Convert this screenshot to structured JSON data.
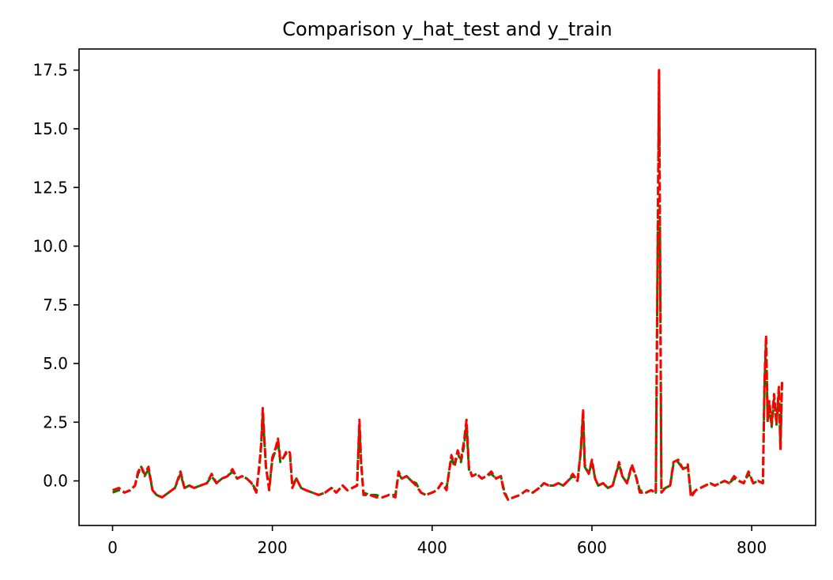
{
  "chart_data": {
    "type": "line",
    "title": "Comparison y_hat_test and y_train",
    "xlabel": "",
    "ylabel": "",
    "xlim": [
      -42,
      880
    ],
    "ylim": [
      -1.9,
      18.4
    ],
    "x_ticks": [
      0,
      200,
      400,
      600,
      800
    ],
    "x_tick_labels": [
      "0",
      "200",
      "400",
      "600",
      "800"
    ],
    "y_ticks": [
      0,
      2.5,
      5,
      7.5,
      10,
      12.5,
      15,
      17.5
    ],
    "y_tick_labels": [
      "0.0",
      "2.5",
      "5.0",
      "7.5",
      "10.0",
      "12.5",
      "15.0",
      "17.5"
    ],
    "grid": false,
    "legend": "none",
    "series": [
      {
        "color": "#008000",
        "style": "dashed",
        "points": [
          [
            0,
            -0.5
          ],
          [
            8,
            -0.4
          ],
          [
            15,
            -0.5
          ],
          [
            22,
            -0.4
          ],
          [
            28,
            -0.2
          ],
          [
            32,
            0.3
          ],
          [
            36,
            0.6
          ],
          [
            40,
            0.2
          ],
          [
            45,
            0.5
          ],
          [
            50,
            -0.4
          ],
          [
            55,
            -0.6
          ],
          [
            62,
            -0.7
          ],
          [
            70,
            -0.5
          ],
          [
            78,
            -0.3
          ],
          [
            85,
            0.3
          ],
          [
            90,
            -0.3
          ],
          [
            96,
            -0.2
          ],
          [
            102,
            -0.3
          ],
          [
            110,
            -0.2
          ],
          [
            118,
            -0.1
          ],
          [
            124,
            0.2
          ],
          [
            130,
            -0.1
          ],
          [
            137,
            0.1
          ],
          [
            144,
            0.2
          ],
          [
            150,
            0.4
          ],
          [
            156,
            0.1
          ],
          [
            162,
            0.2
          ],
          [
            168,
            0.1
          ],
          [
            174,
            -0.1
          ],
          [
            180,
            -0.4
          ],
          [
            184,
            0.7
          ],
          [
            186,
            1.5
          ],
          [
            188,
            2.9
          ],
          [
            190,
            1.7
          ],
          [
            192,
            0.6
          ],
          [
            196,
            -0.3
          ],
          [
            200,
            0.9
          ],
          [
            204,
            1.3
          ],
          [
            207,
            1.7
          ],
          [
            210,
            0.8
          ],
          [
            214,
            1.0
          ],
          [
            218,
            1.2
          ],
          [
            222,
            1.1
          ],
          [
            225,
            -0.2
          ],
          [
            230,
            0.1
          ],
          [
            236,
            -0.3
          ],
          [
            242,
            -0.4
          ],
          [
            250,
            -0.5
          ],
          [
            258,
            -0.6
          ],
          [
            266,
            -0.5
          ],
          [
            274,
            -0.3
          ],
          [
            280,
            -0.5
          ],
          [
            288,
            -0.2
          ],
          [
            294,
            -0.4
          ],
          [
            300,
            -0.3
          ],
          [
            306,
            -0.2
          ],
          [
            309,
            2.4
          ],
          [
            311,
            0.8
          ],
          [
            314,
            -0.5
          ],
          [
            322,
            -0.6
          ],
          [
            330,
            -0.6
          ],
          [
            338,
            -0.7
          ],
          [
            346,
            -0.6
          ],
          [
            354,
            -0.6
          ],
          [
            358,
            0.3
          ],
          [
            362,
            0.1
          ],
          [
            368,
            0.2
          ],
          [
            374,
            0.0
          ],
          [
            380,
            -0.1
          ],
          [
            386,
            -0.5
          ],
          [
            392,
            -0.6
          ],
          [
            400,
            -0.5
          ],
          [
            406,
            -0.4
          ],
          [
            412,
            -0.1
          ],
          [
            418,
            -0.3
          ],
          [
            424,
            1.0
          ],
          [
            428,
            0.6
          ],
          [
            432,
            1.2
          ],
          [
            436,
            0.8
          ],
          [
            440,
            1.5
          ],
          [
            443,
            2.4
          ],
          [
            446,
            0.5
          ],
          [
            450,
            0.2
          ],
          [
            456,
            0.3
          ],
          [
            462,
            0.1
          ],
          [
            468,
            0.2
          ],
          [
            474,
            0.3
          ],
          [
            480,
            0.1
          ],
          [
            486,
            0.2
          ],
          [
            490,
            -0.4
          ],
          [
            495,
            -0.8
          ],
          [
            502,
            -0.7
          ],
          [
            510,
            -0.6
          ],
          [
            518,
            -0.4
          ],
          [
            526,
            -0.5
          ],
          [
            534,
            -0.3
          ],
          [
            540,
            -0.1
          ],
          [
            546,
            -0.2
          ],
          [
            552,
            -0.2
          ],
          [
            558,
            -0.1
          ],
          [
            564,
            -0.2
          ],
          [
            570,
            0.0
          ],
          [
            576,
            0.2
          ],
          [
            582,
            0.0
          ],
          [
            586,
            1.2
          ],
          [
            589,
            2.9
          ],
          [
            591,
            0.6
          ],
          [
            596,
            0.3
          ],
          [
            600,
            0.8
          ],
          [
            604,
            0.1
          ],
          [
            608,
            -0.2
          ],
          [
            614,
            -0.1
          ],
          [
            620,
            -0.3
          ],
          [
            626,
            -0.2
          ],
          [
            630,
            0.3
          ],
          [
            634,
            0.7
          ],
          [
            638,
            0.2
          ],
          [
            644,
            -0.1
          ],
          [
            650,
            0.6
          ],
          [
            655,
            0.2
          ],
          [
            660,
            -0.4
          ],
          [
            668,
            -0.5
          ],
          [
            674,
            -0.4
          ],
          [
            680,
            -0.5
          ],
          [
            684,
            17.4
          ],
          [
            687,
            -0.4
          ],
          [
            692,
            -0.3
          ],
          [
            698,
            -0.2
          ],
          [
            702,
            0.7
          ],
          [
            708,
            0.8
          ],
          [
            714,
            0.5
          ],
          [
            720,
            0.6
          ],
          [
            724,
            -0.6
          ],
          [
            730,
            -0.4
          ],
          [
            736,
            -0.3
          ],
          [
            742,
            -0.2
          ],
          [
            748,
            -0.1
          ],
          [
            754,
            -0.2
          ],
          [
            760,
            -0.1
          ],
          [
            766,
            0.0
          ],
          [
            772,
            -0.1
          ],
          [
            778,
            0.1
          ],
          [
            784,
            0.0
          ],
          [
            790,
            -0.1
          ],
          [
            796,
            0.3
          ],
          [
            802,
            -0.1
          ],
          [
            808,
            0.0
          ],
          [
            814,
            -0.1
          ],
          [
            816,
            4.0
          ],
          [
            818,
            6.0
          ],
          [
            820,
            2.5
          ],
          [
            822,
            3.2
          ],
          [
            825,
            2.3
          ],
          [
            828,
            3.5
          ],
          [
            831,
            2.4
          ],
          [
            834,
            3.8
          ],
          [
            836,
            1.5
          ],
          [
            838,
            4.2
          ]
        ]
      },
      {
        "color": "#ff0000",
        "style": "dashed",
        "points": [
          [
            0,
            -0.4
          ],
          [
            8,
            -0.3
          ],
          [
            15,
            -0.5
          ],
          [
            22,
            -0.4
          ],
          [
            28,
            -0.2
          ],
          [
            32,
            0.4
          ],
          [
            36,
            0.6
          ],
          [
            40,
            0.3
          ],
          [
            45,
            0.6
          ],
          [
            50,
            -0.4
          ],
          [
            55,
            -0.6
          ],
          [
            62,
            -0.7
          ],
          [
            70,
            -0.5
          ],
          [
            78,
            -0.3
          ],
          [
            85,
            0.4
          ],
          [
            90,
            -0.3
          ],
          [
            96,
            -0.2
          ],
          [
            102,
            -0.3
          ],
          [
            110,
            -0.2
          ],
          [
            118,
            -0.1
          ],
          [
            124,
            0.3
          ],
          [
            130,
            -0.1
          ],
          [
            137,
            0.1
          ],
          [
            144,
            0.2
          ],
          [
            150,
            0.5
          ],
          [
            156,
            0.1
          ],
          [
            162,
            0.2
          ],
          [
            168,
            0.1
          ],
          [
            174,
            -0.1
          ],
          [
            180,
            -0.5
          ],
          [
            184,
            0.8
          ],
          [
            186,
            1.6
          ],
          [
            188,
            3.1
          ],
          [
            190,
            1.8
          ],
          [
            192,
            0.6
          ],
          [
            196,
            -0.4
          ],
          [
            200,
            1.0
          ],
          [
            204,
            1.4
          ],
          [
            207,
            1.8
          ],
          [
            210,
            0.9
          ],
          [
            214,
            1.0
          ],
          [
            218,
            1.3
          ],
          [
            222,
            1.2
          ],
          [
            225,
            -0.3
          ],
          [
            230,
            0.1
          ],
          [
            236,
            -0.3
          ],
          [
            242,
            -0.4
          ],
          [
            250,
            -0.5
          ],
          [
            258,
            -0.6
          ],
          [
            266,
            -0.5
          ],
          [
            274,
            -0.3
          ],
          [
            280,
            -0.5
          ],
          [
            288,
            -0.2
          ],
          [
            294,
            -0.4
          ],
          [
            300,
            -0.3
          ],
          [
            306,
            -0.2
          ],
          [
            309,
            2.6
          ],
          [
            311,
            0.9
          ],
          [
            314,
            -0.6
          ],
          [
            322,
            -0.6
          ],
          [
            330,
            -0.7
          ],
          [
            338,
            -0.7
          ],
          [
            346,
            -0.6
          ],
          [
            354,
            -0.7
          ],
          [
            358,
            0.4
          ],
          [
            362,
            0.1
          ],
          [
            368,
            0.2
          ],
          [
            374,
            0.0
          ],
          [
            380,
            -0.2
          ],
          [
            386,
            -0.5
          ],
          [
            392,
            -0.6
          ],
          [
            400,
            -0.5
          ],
          [
            406,
            -0.4
          ],
          [
            412,
            -0.1
          ],
          [
            418,
            -0.4
          ],
          [
            424,
            1.1
          ],
          [
            428,
            0.7
          ],
          [
            432,
            1.3
          ],
          [
            436,
            0.9
          ],
          [
            440,
            1.7
          ],
          [
            443,
            2.6
          ],
          [
            446,
            0.6
          ],
          [
            450,
            0.2
          ],
          [
            456,
            0.3
          ],
          [
            462,
            0.1
          ],
          [
            468,
            0.2
          ],
          [
            474,
            0.4
          ],
          [
            480,
            0.1
          ],
          [
            486,
            0.2
          ],
          [
            490,
            -0.5
          ],
          [
            495,
            -0.8
          ],
          [
            502,
            -0.7
          ],
          [
            510,
            -0.6
          ],
          [
            518,
            -0.4
          ],
          [
            526,
            -0.5
          ],
          [
            534,
            -0.3
          ],
          [
            540,
            -0.1
          ],
          [
            546,
            -0.2
          ],
          [
            552,
            -0.2
          ],
          [
            558,
            -0.1
          ],
          [
            564,
            -0.2
          ],
          [
            570,
            0.0
          ],
          [
            576,
            0.3
          ],
          [
            582,
            0.0
          ],
          [
            586,
            1.3
          ],
          [
            589,
            3.0
          ],
          [
            591,
            0.7
          ],
          [
            596,
            0.3
          ],
          [
            600,
            0.9
          ],
          [
            604,
            0.1
          ],
          [
            608,
            -0.2
          ],
          [
            614,
            -0.1
          ],
          [
            620,
            -0.3
          ],
          [
            626,
            -0.2
          ],
          [
            630,
            0.3
          ],
          [
            634,
            0.8
          ],
          [
            638,
            0.2
          ],
          [
            644,
            -0.1
          ],
          [
            650,
            0.7
          ],
          [
            655,
            0.2
          ],
          [
            660,
            -0.5
          ],
          [
            668,
            -0.5
          ],
          [
            674,
            -0.4
          ],
          [
            680,
            -0.5
          ],
          [
            684,
            17.5
          ],
          [
            687,
            -0.5
          ],
          [
            692,
            -0.3
          ],
          [
            698,
            -0.2
          ],
          [
            702,
            0.8
          ],
          [
            708,
            0.9
          ],
          [
            714,
            0.5
          ],
          [
            720,
            0.7
          ],
          [
            724,
            -0.7
          ],
          [
            730,
            -0.4
          ],
          [
            736,
            -0.3
          ],
          [
            742,
            -0.2
          ],
          [
            748,
            -0.1
          ],
          [
            754,
            -0.2
          ],
          [
            760,
            -0.1
          ],
          [
            766,
            0.0
          ],
          [
            772,
            -0.1
          ],
          [
            778,
            0.2
          ],
          [
            784,
            0.0
          ],
          [
            790,
            -0.1
          ],
          [
            796,
            0.4
          ],
          [
            802,
            -0.1
          ],
          [
            808,
            0.0
          ],
          [
            814,
            -0.1
          ],
          [
            816,
            4.2
          ],
          [
            818,
            6.2
          ],
          [
            820,
            2.6
          ],
          [
            822,
            3.4
          ],
          [
            825,
            2.4
          ],
          [
            828,
            3.7
          ],
          [
            831,
            2.5
          ],
          [
            834,
            4.0
          ],
          [
            836,
            1.3
          ],
          [
            838,
            4.3
          ]
        ]
      }
    ]
  }
}
